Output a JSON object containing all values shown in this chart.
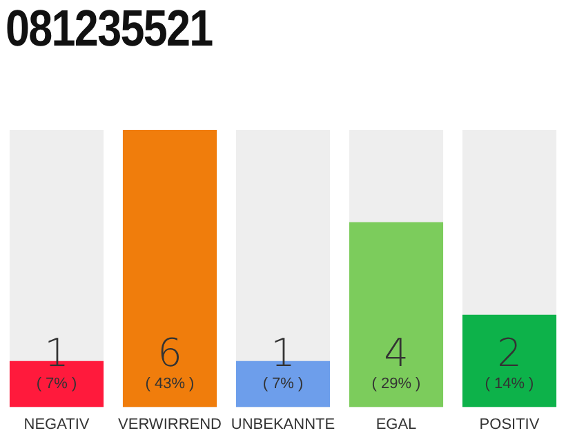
{
  "chart_data": {
    "type": "bar",
    "title": "081235521",
    "categories": [
      "NEGATIV",
      "VERWIRREND",
      "UNBEKANNTE",
      "EGAL",
      "POSITIV"
    ],
    "values": [
      1,
      6,
      1,
      4,
      2
    ],
    "data_labels": true,
    "colors": [
      "#ff1a3c",
      "#f07d0c",
      "#6d9eeb",
      "#7ccc5c",
      "#0db24a"
    ],
    "annotations": [
      "( 7% )",
      "( 43% )",
      "( 7% )",
      "( 29% )",
      "( 14% )"
    ],
    "tick_labels": "x",
    "grid": false,
    "legend": false
  }
}
